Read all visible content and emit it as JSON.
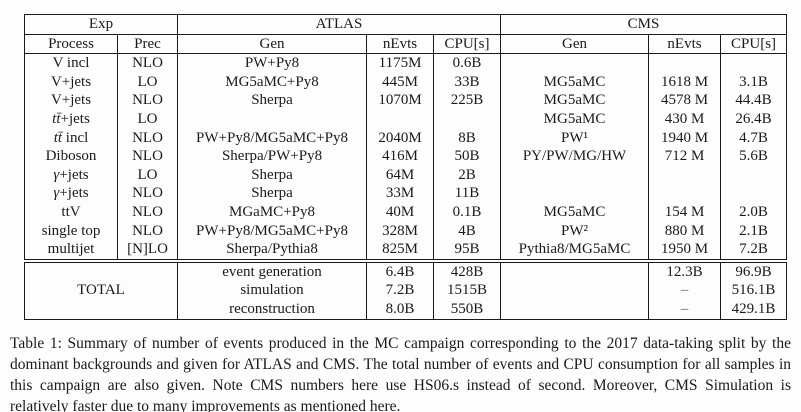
{
  "table": {
    "header": {
      "exp": "Exp",
      "atlas": "ATLAS",
      "cms": "CMS",
      "process": "Process",
      "prec": "Prec",
      "gen": "Gen",
      "nevts": "nEvts",
      "cpu": "CPU[s]"
    },
    "rows": [
      {
        "process_math": "",
        "process_rest": "V incl",
        "prec": "NLO",
        "a_gen": "PW+Py8",
        "a_nevts": "1175M",
        "a_cpu": "0.6B",
        "c_gen": "",
        "c_nevts": "",
        "c_cpu": ""
      },
      {
        "process_math": "",
        "process_rest": "V+jets",
        "prec": "LO",
        "a_gen": "MG5aMC+Py8",
        "a_nevts": "445M",
        "a_cpu": "33B",
        "c_gen": "MG5aMC",
        "c_nevts": "1618 M",
        "c_cpu": "3.1B"
      },
      {
        "process_math": "",
        "process_rest": "V+jets",
        "prec": "NLO",
        "a_gen": "Sherpa",
        "a_nevts": "1070M",
        "a_cpu": "225B",
        "c_gen": "MG5aMC",
        "c_nevts": "4578 M",
        "c_cpu": "44.4B"
      },
      {
        "process_math": "tt̄",
        "process_rest": "+jets",
        "prec": "LO",
        "a_gen": "",
        "a_nevts": "",
        "a_cpu": "",
        "c_gen": "MG5aMC",
        "c_nevts": "430 M",
        "c_cpu": "26.4B"
      },
      {
        "process_math": "tt̄",
        "process_rest": " incl",
        "prec": "NLO",
        "a_gen": "PW+Py8/MG5aMC+Py8",
        "a_nevts": "2040M",
        "a_cpu": "8B",
        "c_gen": "PW¹",
        "c_nevts": "1940 M",
        "c_cpu": "4.7B"
      },
      {
        "process_math": "",
        "process_rest": "Diboson",
        "prec": "NLO",
        "a_gen": "Sherpa/PW+Py8",
        "a_nevts": "416M",
        "a_cpu": "50B",
        "c_gen": "PY/PW/MG/HW",
        "c_nevts": "712 M",
        "c_cpu": "5.6B"
      },
      {
        "process_math": "γ",
        "process_rest": "+jets",
        "prec": "LO",
        "a_gen": "Sherpa",
        "a_nevts": "64M",
        "a_cpu": "2B",
        "c_gen": "",
        "c_nevts": "",
        "c_cpu": ""
      },
      {
        "process_math": "γ",
        "process_rest": "+jets",
        "prec": "NLO",
        "a_gen": "Sherpa",
        "a_nevts": "33M",
        "a_cpu": "11B",
        "c_gen": "",
        "c_nevts": "",
        "c_cpu": ""
      },
      {
        "process_math": "",
        "process_rest": "ttV",
        "prec": "NLO",
        "a_gen": "MGaMC+Py8",
        "a_nevts": "40M",
        "a_cpu": "0.1B",
        "c_gen": "MG5aMC",
        "c_nevts": "154 M",
        "c_cpu": "2.0B"
      },
      {
        "process_math": "",
        "process_rest": "single top",
        "prec": "NLO",
        "a_gen": "PW+Py8/MG5aMC+Py8",
        "a_nevts": "328M",
        "a_cpu": "4B",
        "c_gen": "PW²",
        "c_nevts": "880 M",
        "c_cpu": "2.1B"
      },
      {
        "process_math": "",
        "process_rest": "multijet",
        "prec": "[N]LO",
        "a_gen": "Sherpa/Pythia8",
        "a_nevts": "825M",
        "a_cpu": "95B",
        "c_gen": "Pythia8/MG5aMC",
        "c_nevts": "1950 M",
        "c_cpu": "7.2B"
      }
    ],
    "totals": {
      "label": "TOTAL",
      "rows": [
        {
          "name": "event generation",
          "a_nevts": "6.4B",
          "a_cpu": "428B",
          "c_gen": "",
          "c_nevts": "12.3B",
          "c_cpu": "96.9B"
        },
        {
          "name": "simulation",
          "a_nevts": "7.2B",
          "a_cpu": "1515B",
          "c_gen": "",
          "c_nevts": "–",
          "c_cpu": "516.1B"
        },
        {
          "name": "reconstruction",
          "a_nevts": "8.0B",
          "a_cpu": "550B",
          "c_gen": "",
          "c_nevts": "–",
          "c_cpu": "429.1B"
        }
      ]
    }
  },
  "caption": {
    "text_before": "Table 1: Summary of number of events produced in the MC campaign corresponding to the 2017 data-taking split by the dominant backgrounds and given for ATLAS and CMS. The total number of events and CPU consumption for all samples in this campaign are also given. Note CMS numbers here use HS06.s instead of second. Moreover, CMS Simulation is relatively faster due to many improvements as mentioned ",
    "link_text": "here",
    "text_after": "."
  },
  "colors": {
    "text": "#1a1a1a",
    "border": "#1a1a1a",
    "background": "#fdfdfd"
  }
}
